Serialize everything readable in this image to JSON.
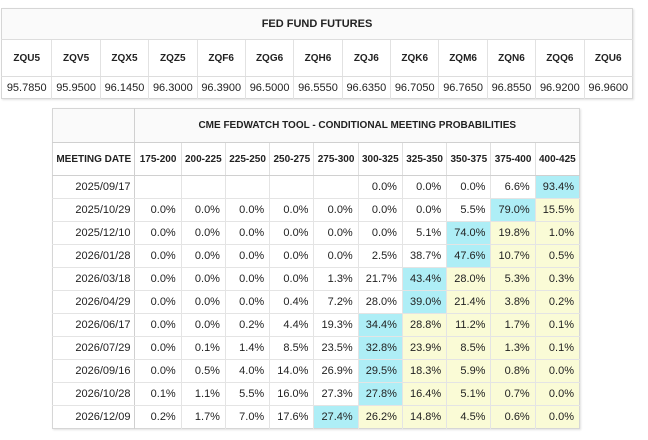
{
  "futures": {
    "title": "FED FUND FUTURES",
    "contracts": [
      {
        "code": "ZQU5",
        "price": "95.7850"
      },
      {
        "code": "ZQV5",
        "price": "95.9500"
      },
      {
        "code": "ZQX5",
        "price": "96.1450"
      },
      {
        "code": "ZQZ5",
        "price": "96.3000"
      },
      {
        "code": "ZQF6",
        "price": "96.3900"
      },
      {
        "code": "ZQG6",
        "price": "96.5000"
      },
      {
        "code": "ZQH6",
        "price": "96.5550"
      },
      {
        "code": "ZQJ6",
        "price": "96.6350"
      },
      {
        "code": "ZQK6",
        "price": "96.7050"
      },
      {
        "code": "ZQM6",
        "price": "96.7650"
      },
      {
        "code": "ZQN6",
        "price": "96.8550"
      },
      {
        "code": "ZQQ6",
        "price": "96.9200"
      },
      {
        "code": "ZQU6",
        "price": "96.9600"
      }
    ]
  },
  "fedwatch": {
    "title": "CME FEDWATCH TOOL - CONDITIONAL MEETING PROBABILITIES",
    "date_header": "MEETING DATE",
    "ranges": [
      "175-200",
      "200-225",
      "225-250",
      "250-275",
      "275-300",
      "300-325",
      "325-350",
      "350-375",
      "375-400",
      "400-425"
    ],
    "rows": [
      {
        "date": "2025/09/17",
        "values": [
          "",
          "",
          "",
          "",
          "",
          "0.0%",
          "0.0%",
          "0.0%",
          "6.6%",
          "93.4%"
        ]
      },
      {
        "date": "2025/10/29",
        "values": [
          "0.0%",
          "0.0%",
          "0.0%",
          "0.0%",
          "0.0%",
          "0.0%",
          "0.0%",
          "5.5%",
          "79.0%",
          "15.5%"
        ]
      },
      {
        "date": "2025/12/10",
        "values": [
          "0.0%",
          "0.0%",
          "0.0%",
          "0.0%",
          "0.0%",
          "0.0%",
          "5.1%",
          "74.0%",
          "19.8%",
          "1.0%"
        ]
      },
      {
        "date": "2026/01/28",
        "values": [
          "0.0%",
          "0.0%",
          "0.0%",
          "0.0%",
          "0.0%",
          "2.5%",
          "38.7%",
          "47.6%",
          "10.7%",
          "0.5%"
        ]
      },
      {
        "date": "2026/03/18",
        "values": [
          "0.0%",
          "0.0%",
          "0.0%",
          "0.0%",
          "1.3%",
          "21.7%",
          "43.4%",
          "28.0%",
          "5.3%",
          "0.3%"
        ]
      },
      {
        "date": "2026/04/29",
        "values": [
          "0.0%",
          "0.0%",
          "0.0%",
          "0.4%",
          "7.2%",
          "28.0%",
          "39.0%",
          "21.4%",
          "3.8%",
          "0.2%"
        ]
      },
      {
        "date": "2026/06/17",
        "values": [
          "0.0%",
          "0.0%",
          "0.2%",
          "4.4%",
          "19.3%",
          "34.4%",
          "28.8%",
          "11.2%",
          "1.7%",
          "0.1%"
        ]
      },
      {
        "date": "2026/07/29",
        "values": [
          "0.0%",
          "0.1%",
          "1.4%",
          "8.5%",
          "23.5%",
          "32.8%",
          "23.9%",
          "8.5%",
          "1.3%",
          "0.1%"
        ]
      },
      {
        "date": "2026/09/16",
        "values": [
          "0.0%",
          "0.5%",
          "4.0%",
          "14.0%",
          "26.9%",
          "29.5%",
          "18.3%",
          "5.9%",
          "0.8%",
          "0.0%"
        ]
      },
      {
        "date": "2026/10/28",
        "values": [
          "0.1%",
          "1.1%",
          "5.5%",
          "16.0%",
          "27.3%",
          "27.8%",
          "16.4%",
          "5.1%",
          "0.7%",
          "0.0%"
        ]
      },
      {
        "date": "2026/12/09",
        "values": [
          "0.2%",
          "1.7%",
          "7.0%",
          "17.6%",
          "27.4%",
          "26.2%",
          "14.8%",
          "4.5%",
          "0.6%",
          "0.0%"
        ]
      }
    ],
    "colors": {
      "current_target": "#aeeef6",
      "cut_zone": "#fafbd6"
    }
  }
}
